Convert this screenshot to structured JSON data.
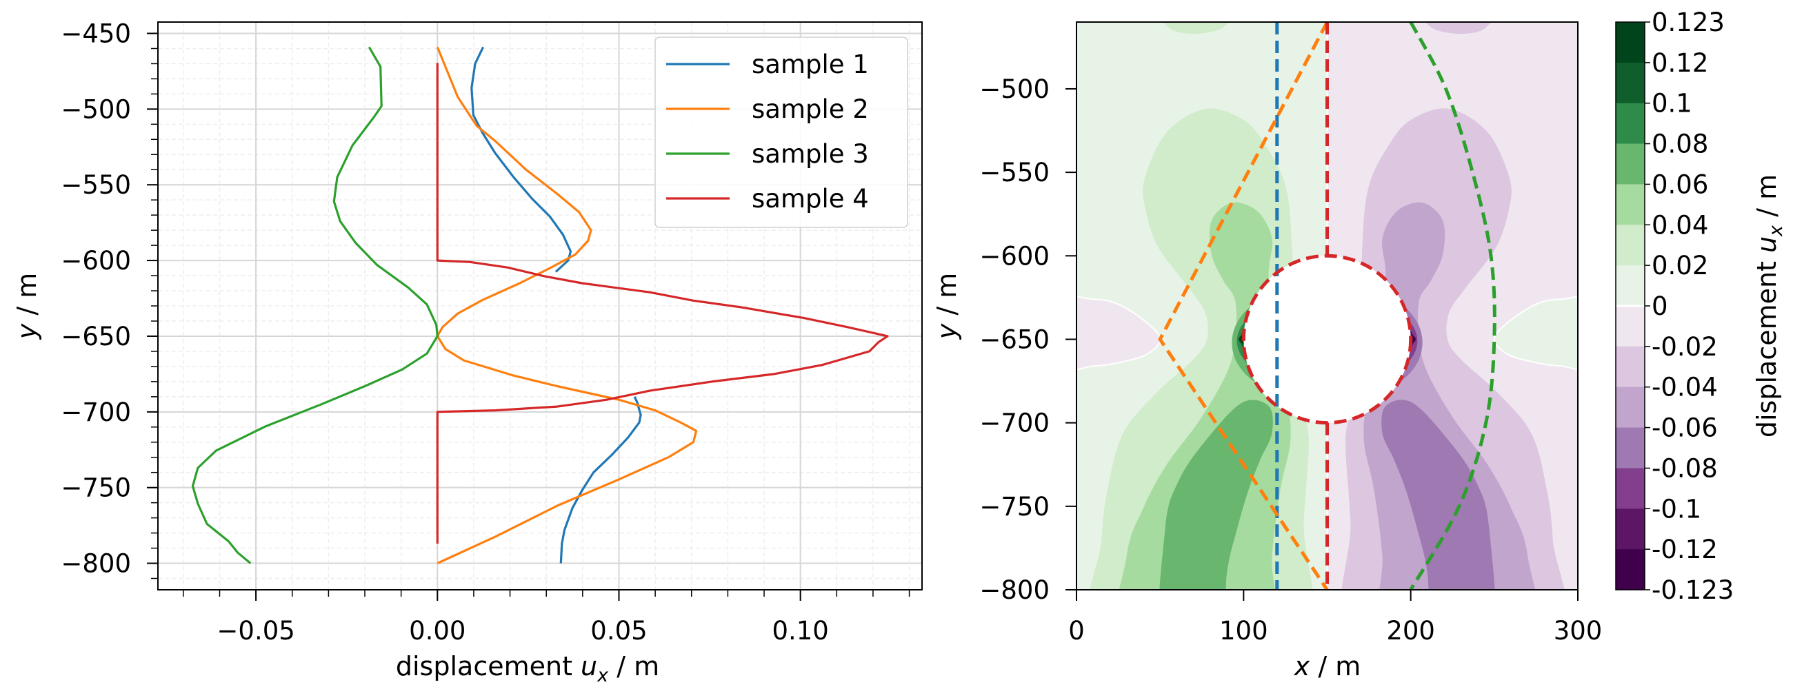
{
  "chart_data": [
    {
      "type": "line",
      "xlabel": {
        "prefix": "displacement ",
        "var": "u",
        "sub": "x",
        "suffix": " / m"
      },
      "ylabel": {
        "var": "y",
        "suffix": " / m"
      },
      "xlim": [
        -0.077,
        0.1335
      ],
      "ylim": [
        -817.5,
        -442.5
      ],
      "xticks": [
        -0.05,
        0.0,
        0.05,
        0.1
      ],
      "xtick_labels": [
        "−0.05",
        "0.00",
        "0.05",
        "0.10"
      ],
      "yticks": [
        -450,
        -500,
        -550,
        -600,
        -650,
        -700,
        -750,
        -800
      ],
      "ytick_labels": [
        "−450",
        "−500",
        "−550",
        "−600",
        "−650",
        "−700",
        "−750",
        "−800"
      ],
      "grid": true,
      "minor_grid": true,
      "legend_position": "top-right",
      "series": [
        {
          "name": "sample 1",
          "color": "#1f77b4",
          "points": [
            [
              0.0126,
              -459
            ],
            [
              0.0104,
              -470
            ],
            [
              0.0094,
              -486
            ],
            [
              0.0099,
              -504
            ],
            [
              0.0125,
              -516
            ],
            [
              0.0159,
              -529
            ],
            [
              0.021,
              -545
            ],
            [
              0.026,
              -559
            ],
            [
              0.031,
              -571
            ],
            [
              0.0346,
              -583
            ],
            [
              0.0367,
              -594
            ],
            [
              0.036,
              -600
            ],
            [
              0.0326,
              -607.5
            ],
            null,
            [
              0.0543,
              -690
            ],
            [
              0.055,
              -693.5
            ],
            [
              0.056,
              -702
            ],
            [
              0.0556,
              -707
            ],
            [
              0.0525,
              -717
            ],
            [
              0.048,
              -728.5
            ],
            [
              0.043,
              -740
            ],
            [
              0.0398,
              -752
            ],
            [
              0.0372,
              -763.5
            ],
            [
              0.035,
              -778
            ],
            [
              0.0343,
              -787
            ],
            [
              0.034,
              -800
            ]
          ]
        },
        {
          "name": "sample 2",
          "color": "#ff7f0e",
          "points": [
            [
              0,
              -459
            ],
            [
              0.0022,
              -472
            ],
            [
              0.0056,
              -492
            ],
            [
              0.0108,
              -511
            ],
            [
              0.0159,
              -521
            ],
            [
              0.0244,
              -540
            ],
            [
              0.033,
              -556
            ],
            [
              0.039,
              -568
            ],
            [
              0.0423,
              -580
            ],
            [
              0.0415,
              -587
            ],
            [
              0.038,
              -596
            ],
            [
              0.031,
              -605
            ],
            [
              0.0227,
              -615
            ],
            [
              0.0125,
              -626
            ],
            [
              0.0056,
              -635
            ],
            [
              0.0014,
              -644
            ],
            [
              0,
              -650
            ],
            [
              0.0022,
              -658.5
            ],
            [
              0.0073,
              -666
            ],
            [
              0.021,
              -676
            ],
            [
              0.033,
              -683
            ],
            [
              0.05,
              -692
            ],
            [
              0.06,
              -699
            ],
            [
              0.067,
              -707
            ],
            [
              0.0713,
              -712.5
            ],
            [
              0.0705,
              -720
            ],
            [
              0.0636,
              -730
            ],
            [
              0.05,
              -744.6
            ],
            [
              0.033,
              -762
            ],
            [
              0.0159,
              -782.5
            ],
            [
              0,
              -800
            ]
          ]
        },
        {
          "name": "sample 3",
          "color": "#2ca02c",
          "points": [
            [
              -0.0188,
              -459
            ],
            [
              -0.0157,
              -472
            ],
            [
              -0.0154,
              -498
            ],
            [
              -0.0174,
              -505
            ],
            [
              -0.0234,
              -524
            ],
            [
              -0.0276,
              -545
            ],
            [
              -0.0285,
              -561
            ],
            [
              -0.0268,
              -574
            ],
            [
              -0.0225,
              -588.5
            ],
            [
              -0.0166,
              -603
            ],
            [
              -0.008,
              -618
            ],
            [
              -0.0029,
              -629
            ],
            [
              -0.0003,
              -642.5
            ],
            [
              0,
              -650
            ],
            [
              -0.0029,
              -661.5
            ],
            [
              -0.0097,
              -672
            ],
            [
              -0.02,
              -683
            ],
            [
              -0.032,
              -695
            ],
            [
              -0.0473,
              -709.5
            ],
            [
              -0.061,
              -725.6
            ],
            [
              -0.066,
              -737
            ],
            [
              -0.0674,
              -749
            ],
            [
              -0.066,
              -760.6
            ],
            [
              -0.0635,
              -774
            ],
            [
              -0.0575,
              -785.5
            ],
            [
              -0.055,
              -793
            ],
            [
              -0.0515,
              -800
            ]
          ]
        },
        {
          "name": "sample 4",
          "color": "#d62728",
          "points": [
            [
              0,
              -469.5
            ],
            [
              0,
              -600
            ],
            [
              0.009,
              -601
            ],
            [
              0.0193,
              -604.6
            ],
            [
              0.0295,
              -610.4
            ],
            [
              0.0398,
              -615
            ],
            [
              0.0585,
              -621
            ],
            [
              0.0705,
              -626.5
            ],
            [
              0.084,
              -631
            ],
            [
              0.101,
              -638
            ],
            [
              0.113,
              -644
            ],
            [
              0.124,
              -650
            ],
            [
              0.1215,
              -654
            ],
            [
              0.119,
              -660
            ],
            [
              0.106,
              -669
            ],
            [
              0.0927,
              -675
            ],
            [
              0.0756,
              -680
            ],
            [
              0.0585,
              -686
            ],
            [
              0.0466,
              -692
            ],
            [
              0.033,
              -696.5
            ],
            [
              0.0159,
              -699
            ],
            [
              0,
              -700
            ],
            [
              0,
              -787
            ]
          ]
        }
      ]
    },
    {
      "type": "heatmap",
      "subtype": "filled-contour",
      "xlabel": {
        "var": "x",
        "suffix": " / m"
      },
      "ylabel": {
        "var": "y",
        "suffix": " / m"
      },
      "xlim": [
        0,
        300
      ],
      "ylim": [
        -800,
        -460
      ],
      "xticks": [
        0,
        100,
        200,
        300
      ],
      "xtick_labels": [
        "0",
        "100",
        "200",
        "300"
      ],
      "yticks": [
        -500,
        -550,
        -600,
        -650,
        -700,
        -750,
        -800
      ],
      "ytick_labels": [
        "−500",
        "−550",
        "−600",
        "−650",
        "−700",
        "−750",
        "−800"
      ],
      "grid": false,
      "cavity": {
        "center": [
          150,
          -650
        ],
        "radius": 50
      },
      "colorbar": {
        "label": {
          "prefix": "displacement ",
          "var": "u",
          "sub": "x",
          "suffix": " / m"
        },
        "levels": [
          "0.123",
          "0.12",
          "0.1",
          "0.08",
          "0.06",
          "0.04",
          "0.02",
          "0",
          "-0.02",
          "-0.04",
          "-0.06",
          "-0.08",
          "-0.1",
          "-0.12",
          "-0.123"
        ],
        "colors": [
          "#00441b",
          "#0f5e2c",
          "#2e8b4a",
          "#69b66e",
          "#a6dba0",
          "#d0ecca",
          "#e8f3e7",
          "#efe6ef",
          "#dcc6e0",
          "#c1a5cc",
          "#9e79b2",
          "#833f8e",
          "#5c1665",
          "#40004b"
        ]
      },
      "sample_lines": [
        {
          "color": "#1f77b4",
          "points": [
            [
              120,
              -460
            ],
            [
              120,
              -800
            ]
          ]
        },
        {
          "color": "#ff7f0e",
          "points": [
            [
              150,
              -460
            ],
            [
              50,
              -650
            ],
            [
              150,
              -800
            ]
          ]
        },
        {
          "color": "#2ca02c",
          "points": [
            [
              200,
              -460
            ],
            [
              221,
              -500
            ],
            [
              237,
              -550
            ],
            [
              248,
              -600
            ],
            [
              250,
              -650
            ],
            [
              245,
              -700
            ],
            [
              229,
              -750
            ],
            [
              200,
              -800
            ]
          ]
        },
        {
          "color": "#d62728",
          "points": [
            [
              150,
              -460
            ],
            [
              150,
              -600
            ]
          ]
        },
        {
          "color": "#d62728",
          "points": [
            [
              150,
              -700
            ],
            [
              150,
              -800
            ]
          ]
        }
      ]
    }
  ]
}
